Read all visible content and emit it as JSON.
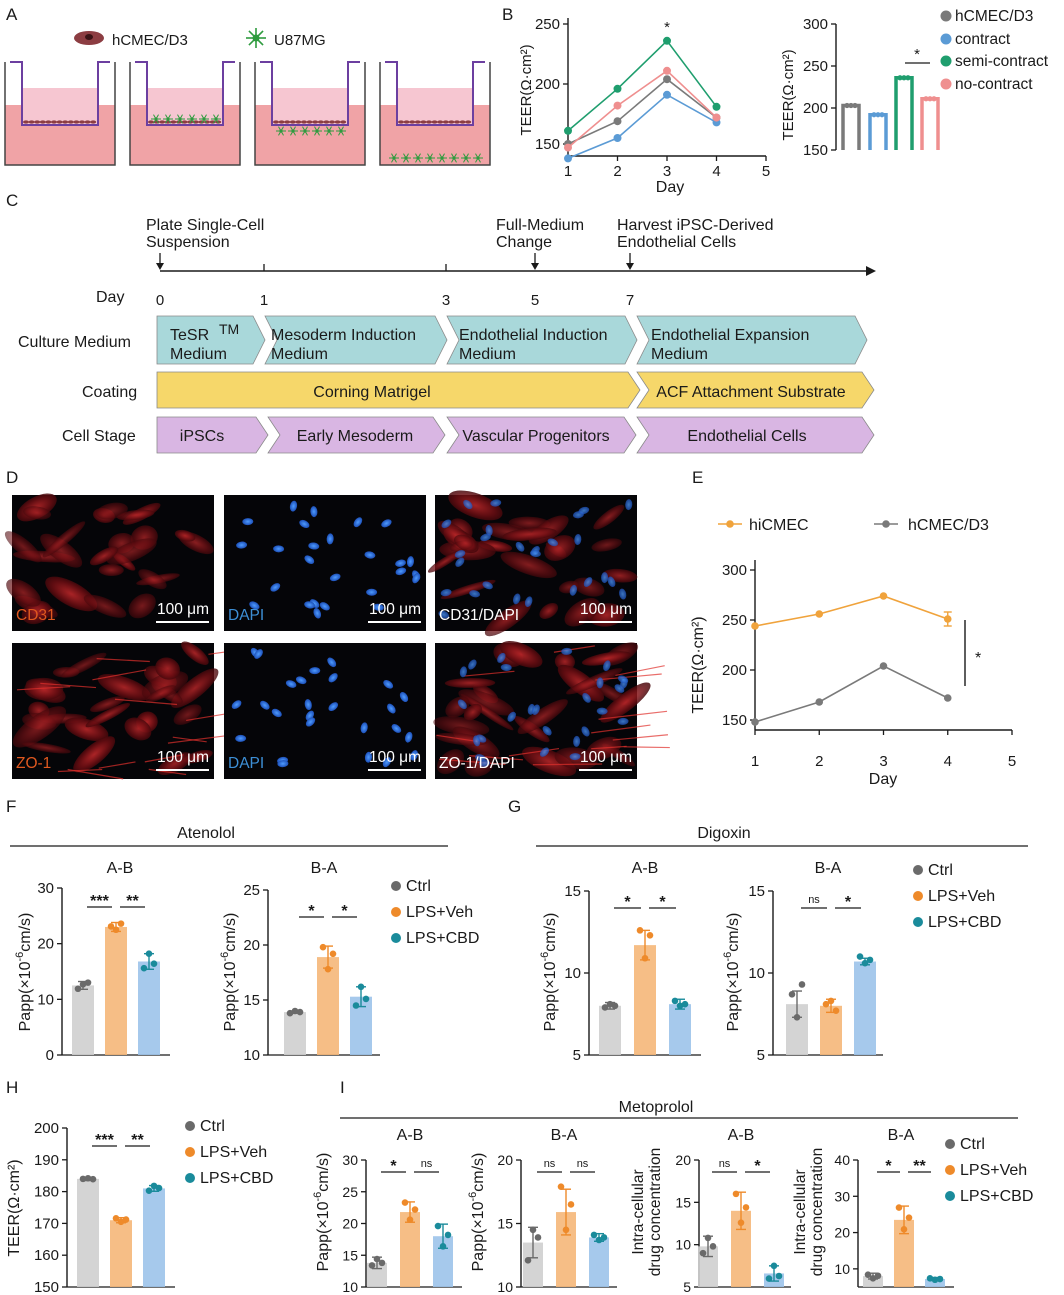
{
  "panels": {
    "A": {
      "letter": "A",
      "legend": [
        {
          "label": "hCMEC/D3",
          "icon": "cell-icon",
          "color": "#8c3d42"
        },
        {
          "label": "U87MG",
          "icon": "astrocyte-icon",
          "color": "#2e9b3e"
        }
      ],
      "wells": [
        "no-contract",
        "contract",
        "semi-contract",
        "no-contract"
      ]
    },
    "B": {
      "letter": "B"
    },
    "C": {
      "letter": "C",
      "day_label": "Day",
      "ticks": [
        "0",
        "1",
        "3",
        "5",
        "7"
      ],
      "events": [
        "Plate Single-Cell",
        "Suspension",
        "Full-Medium",
        "Change",
        "Harvest iPSC-Derived",
        "Endothelial Cells"
      ],
      "rows": {
        "culture": {
          "label": "Culture Medium",
          "segments": [
            [
              "TeSR",
              "Medium"
            ],
            [
              "Mesoderm Induction",
              "Medium"
            ],
            [
              "Endothelial Induction",
              "Medium"
            ],
            [
              "Endothelial Expansion",
              "Medium"
            ]
          ],
          "tm": "TM",
          "color": "#a9d8da"
        },
        "coating": {
          "label": "Coating",
          "segments": [
            "Corning Matrigel",
            "ACF Attachment Substrate"
          ],
          "color": "#f6d76a"
        },
        "stage": {
          "label": "Cell Stage",
          "segments": [
            "iPSCs",
            "Early Mesoderm",
            "Vascular Progenitors",
            "Endothelial Cells"
          ],
          "color": "#d9b6e3"
        }
      }
    },
    "D": {
      "letter": "D",
      "tiles": [
        {
          "label": "CD31",
          "scale": "100 μm",
          "label_color": "#e0581f"
        },
        {
          "label": "DAPI",
          "scale": "100 μm",
          "label_color": "#3d8fd6"
        },
        {
          "label": "CD31/DAPI",
          "scale": "100 μm",
          "label_color": "#ffffff"
        },
        {
          "label": "ZO-1",
          "scale": "100 μm",
          "label_color": "#e0581f"
        },
        {
          "label": "DAPI",
          "scale": "100 μm",
          "label_color": "#3d8fd6"
        },
        {
          "label": "ZO-1/DAPI",
          "scale": "100 μm",
          "label_color": "#ffffff"
        }
      ]
    },
    "E": {
      "letter": "E"
    },
    "F": {
      "letter": "F",
      "drug": "Atenolol"
    },
    "G": {
      "letter": "G",
      "drug": "Digoxin"
    },
    "H": {
      "letter": "H"
    },
    "I": {
      "letter": "I",
      "drug": "Metoprolol"
    }
  },
  "colors": {
    "hCMEC": "#7a7a7a",
    "contract": "#5b9bd5",
    "semi": "#1f9e6e",
    "nocontract": "#ef8f8f",
    "hiCMEC": "#f0a33c",
    "ctrl": "#6a6a6a",
    "lps_veh": "#ee8a2a",
    "lps_cbd": "#1a8b9b"
  },
  "chart_data": [
    {
      "id": "B-line",
      "type": "line",
      "xlabel": "Day",
      "ylabel": "TEER(Ω·cm²)",
      "xlim": [
        1,
        5
      ],
      "ylim": [
        140,
        255
      ],
      "xticks": [
        1,
        2,
        3,
        4,
        5
      ],
      "yticks": [
        150,
        200,
        250
      ],
      "annotation": "*",
      "annotation_x": 3,
      "series": [
        {
          "name": "hCMEC/D3",
          "x": [
            1,
            2,
            3,
            4
          ],
          "y": [
            150,
            169,
            204,
            172
          ]
        },
        {
          "name": "contract",
          "x": [
            1,
            2,
            3,
            4
          ],
          "y": [
            138,
            155,
            191,
            168
          ]
        },
        {
          "name": "semi-contract",
          "x": [
            1,
            2,
            3,
            4
          ],
          "y": [
            161,
            196,
            236,
            181
          ]
        },
        {
          "name": "no-contract",
          "x": [
            1,
            2,
            3,
            4
          ],
          "y": [
            147,
            182,
            211,
            172
          ]
        }
      ]
    },
    {
      "id": "B-bar",
      "type": "bar",
      "ylabel": "TEER(Ω·cm²)",
      "ylim": [
        150,
        300
      ],
      "yticks": [
        150,
        200,
        250,
        300
      ],
      "categories": [
        "hCMEC/D3",
        "contract",
        "semi-contract",
        "no-contract"
      ],
      "values": [
        203,
        192,
        236,
        211
      ],
      "legend": [
        "hCMEC/D3",
        "contract",
        "semi-contract",
        "no-contract"
      ],
      "legend_position": "right",
      "sig": [
        {
          "from": 2,
          "to": 3,
          "label": "*"
        }
      ]
    },
    {
      "id": "E-line",
      "type": "line",
      "xlabel": "Day",
      "ylabel": "TEER(Ω·cm²)",
      "xlim": [
        1,
        5
      ],
      "ylim": [
        140,
        310
      ],
      "xticks": [
        1,
        2,
        3,
        4,
        5
      ],
      "yticks": [
        150,
        200,
        250,
        300
      ],
      "legend": [
        "hiCMEC",
        "hCMEC/D3"
      ],
      "legend_position": "top",
      "annotation": "*",
      "series": [
        {
          "name": "hiCMEC",
          "x": [
            1,
            2,
            3,
            4
          ],
          "y": [
            244,
            256,
            274,
            251
          ]
        },
        {
          "name": "hCMEC/D3",
          "x": [
            1,
            2,
            3,
            4
          ],
          "y": [
            148,
            168,
            204,
            172
          ]
        }
      ]
    },
    {
      "id": "F-AB",
      "type": "bar",
      "title": "A-B",
      "ylabel": "Papp(×10-6cm/s)",
      "ylim": [
        0,
        30
      ],
      "yticks": [
        0,
        10,
        20,
        30
      ],
      "categories": [
        "Ctrl",
        "LPS+Veh",
        "LPS+CBD"
      ],
      "values": [
        12.5,
        23,
        16.8
      ],
      "sig": [
        {
          "from": 0,
          "to": 1,
          "label": "***"
        },
        {
          "from": 1,
          "to": 2,
          "label": "**"
        }
      ]
    },
    {
      "id": "F-BA",
      "type": "bar",
      "title": "B-A",
      "ylabel": "Papp(×10-6cm/s)",
      "ylim": [
        10,
        25
      ],
      "yticks": [
        10,
        15,
        20,
        25
      ],
      "categories": [
        "Ctrl",
        "LPS+Veh",
        "LPS+CBD"
      ],
      "values": [
        13.9,
        18.9,
        15.3
      ],
      "legend": [
        "Ctrl",
        "LPS+Veh",
        "LPS+CBD"
      ],
      "sig": [
        {
          "from": 0,
          "to": 1,
          "label": "*"
        },
        {
          "from": 1,
          "to": 2,
          "label": "*"
        }
      ]
    },
    {
      "id": "G-AB",
      "type": "bar",
      "title": "A-B",
      "ylabel": "Papp(×10-6cm/s)",
      "ylim": [
        5,
        15
      ],
      "yticks": [
        5,
        10,
        15
      ],
      "categories": [
        "Ctrl",
        "LPS+Veh",
        "LPS+CBD"
      ],
      "values": [
        8.0,
        11.7,
        8.1
      ],
      "sig": [
        {
          "from": 0,
          "to": 1,
          "label": "*"
        },
        {
          "from": 1,
          "to": 2,
          "label": "*"
        }
      ]
    },
    {
      "id": "G-BA",
      "type": "bar",
      "title": "B-A",
      "ylabel": "Papp(×10-6cm/s)",
      "ylim": [
        5,
        15
      ],
      "yticks": [
        5,
        10,
        15
      ],
      "categories": [
        "Ctrl",
        "LPS+Veh",
        "LPS+CBD"
      ],
      "values": [
        8.1,
        8.0,
        10.7
      ],
      "legend": [
        "Ctrl",
        "LPS+Veh",
        "LPS+CBD"
      ],
      "sig": [
        {
          "from": 0,
          "to": 1,
          "label": "ns"
        },
        {
          "from": 1,
          "to": 2,
          "label": "*"
        }
      ]
    },
    {
      "id": "H",
      "type": "bar",
      "ylabel": "TEER(Ω·cm²)",
      "ylim": [
        150,
        200
      ],
      "yticks": [
        150,
        160,
        170,
        180,
        190,
        200
      ],
      "categories": [
        "Ctrl",
        "LPS+Veh",
        "LPS+CBD"
      ],
      "values": [
        184,
        171,
        181
      ],
      "legend": [
        "Ctrl",
        "LPS+Veh",
        "LPS+CBD"
      ],
      "sig": [
        {
          "from": 0,
          "to": 1,
          "label": "***"
        },
        {
          "from": 1,
          "to": 2,
          "label": "**"
        }
      ]
    },
    {
      "id": "I-1",
      "type": "bar",
      "title": "A-B",
      "ylabel": "Papp(×10-6cm/s)",
      "ylim": [
        10,
        30
      ],
      "yticks": [
        10,
        15,
        20,
        25,
        30
      ],
      "categories": [
        "Ctrl",
        "LPS+Veh",
        "LPS+CBD"
      ],
      "values": [
        13.8,
        21.8,
        18.0
      ],
      "sig": [
        {
          "from": 0,
          "to": 1,
          "label": "*"
        },
        {
          "from": 1,
          "to": 2,
          "label": "ns"
        }
      ]
    },
    {
      "id": "I-2",
      "type": "bar",
      "title": "B-A",
      "ylabel": "Papp(×10-6cm/s)",
      "ylim": [
        10,
        20
      ],
      "yticks": [
        10,
        15,
        20
      ],
      "categories": [
        "Ctrl",
        "LPS+Veh",
        "LPS+CBD"
      ],
      "values": [
        13.5,
        15.9,
        13.9
      ],
      "sig": [
        {
          "from": 0,
          "to": 1,
          "label": "ns"
        },
        {
          "from": 1,
          "to": 2,
          "label": "ns"
        }
      ]
    },
    {
      "id": "I-3",
      "type": "bar",
      "title": "A-B",
      "ylabel": [
        "Intra-cellular",
        "drug concentration"
      ],
      "ylim": [
        5,
        20
      ],
      "yticks": [
        5,
        10,
        15,
        20
      ],
      "categories": [
        "Ctrl",
        "LPS+Veh",
        "LPS+CBD"
      ],
      "values": [
        9.8,
        14.0,
        6.6
      ],
      "sig": [
        {
          "from": 0,
          "to": 1,
          "label": "ns"
        },
        {
          "from": 1,
          "to": 2,
          "label": "*"
        }
      ]
    },
    {
      "id": "I-4",
      "type": "bar",
      "title": "B-A",
      "ylabel": [
        "Intra-cellular",
        "drug concentration"
      ],
      "ylim": [
        5,
        40
      ],
      "yticks": [
        10,
        20,
        30,
        40
      ],
      "categories": [
        "Ctrl",
        "LPS+Veh",
        "LPS+CBD"
      ],
      "values": [
        8.0,
        23.5,
        7.2
      ],
      "legend": [
        "Ctrl",
        "LPS+Veh",
        "LPS+CBD"
      ],
      "sig": [
        {
          "from": 0,
          "to": 1,
          "label": "*"
        },
        {
          "from": 1,
          "to": 2,
          "label": "**"
        }
      ]
    }
  ]
}
